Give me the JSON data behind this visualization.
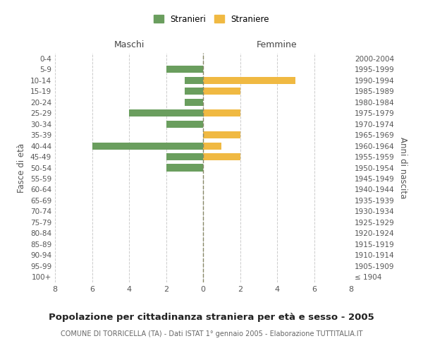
{
  "age_groups": [
    "100+",
    "95-99",
    "90-94",
    "85-89",
    "80-84",
    "75-79",
    "70-74",
    "65-69",
    "60-64",
    "55-59",
    "50-54",
    "45-49",
    "40-44",
    "35-39",
    "30-34",
    "25-29",
    "20-24",
    "15-19",
    "10-14",
    "5-9",
    "0-4"
  ],
  "birth_years": [
    "≤ 1904",
    "1905-1909",
    "1910-1914",
    "1915-1919",
    "1920-1924",
    "1925-1929",
    "1930-1934",
    "1935-1939",
    "1940-1944",
    "1945-1949",
    "1950-1954",
    "1955-1959",
    "1960-1964",
    "1965-1969",
    "1970-1974",
    "1975-1979",
    "1980-1984",
    "1985-1989",
    "1990-1994",
    "1995-1999",
    "2000-2004"
  ],
  "males": [
    0,
    0,
    0,
    0,
    0,
    0,
    0,
    0,
    0,
    0,
    2,
    2,
    6,
    0,
    2,
    4,
    1,
    1,
    1,
    2,
    0
  ],
  "females": [
    0,
    0,
    0,
    0,
    0,
    0,
    0,
    0,
    0,
    0,
    0,
    2,
    1,
    2,
    0,
    2,
    0,
    2,
    5,
    0,
    0
  ],
  "male_color": "#6a9e5e",
  "female_color": "#f0b942",
  "title": "Popolazione per cittadinanza straniera per età e sesso - 2005",
  "subtitle": "COMUNE DI TORRICELLA (TA) - Dati ISTAT 1° gennaio 2005 - Elaborazione TUTTITALIA.IT",
  "ylabel_left": "Fasce di età",
  "ylabel_right": "Anni di nascita",
  "xlabel_left": "Maschi",
  "xlabel_right": "Femmine",
  "legend_male": "Stranieri",
  "legend_female": "Straniere",
  "xlim": 8,
  "background_color": "#ffffff",
  "grid_color": "#cccccc",
  "center_line_color": "#888866"
}
